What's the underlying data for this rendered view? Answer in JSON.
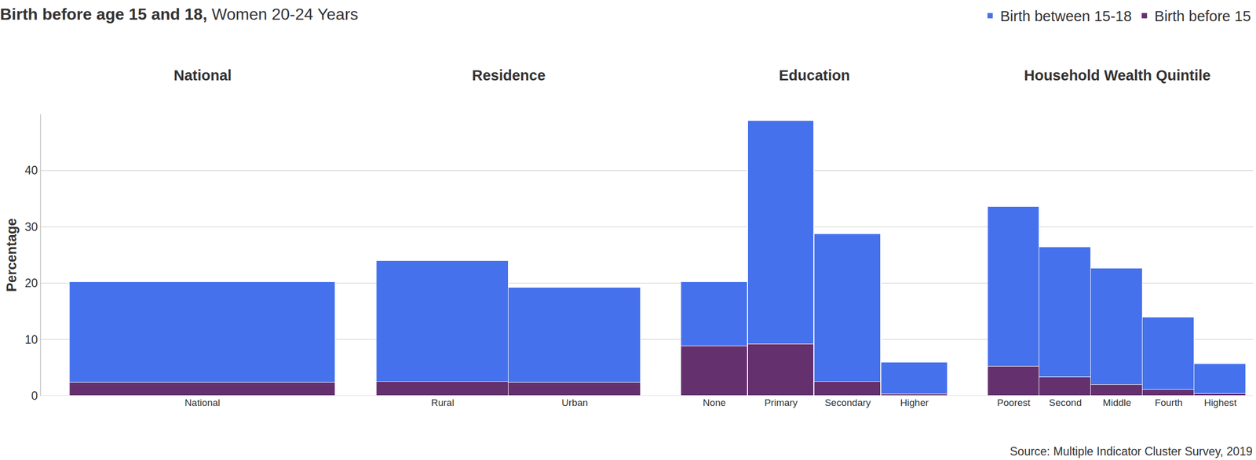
{
  "chart_data": {
    "type": "bar",
    "title": "Birth before age 15 and 18, Women 20-24 Years",
    "y_label": "Percentage",
    "source": "Source: Multiple Indicator Cluster Survey, 2019",
    "stacked": true,
    "legend": "top right",
    "grid": true,
    "ylim": [
      0,
      50
    ],
    "yticks": [
      0,
      10,
      20,
      30,
      40
    ],
    "groups": [
      {
        "title": "National",
        "categories": [
          "National"
        ]
      },
      {
        "title": "Residence",
        "categories": [
          "Rural",
          "Urban"
        ]
      },
      {
        "title": "Education",
        "categories": [
          "None",
          "Primary",
          "Secondary",
          "Higher"
        ]
      },
      {
        "title": "Household Wealth Quintile",
        "categories": [
          "Poorest",
          "Second",
          "Middle",
          "Fourth",
          "Highest"
        ]
      }
    ],
    "series": [
      {
        "name": "Birth between 15-18",
        "color": "#4671ec",
        "values": [
          17.9,
          21.5,
          16.9,
          11.4,
          39.6,
          26.2,
          5.6,
          28.4,
          23.1,
          20.6,
          12.8,
          5.3
        ]
      },
      {
        "name": "Birth before 15",
        "color": "#64306e",
        "values": [
          2.3,
          2.5,
          2.3,
          8.8,
          9.2,
          2.5,
          0.3,
          5.2,
          3.3,
          2.0,
          1.1,
          0.4
        ]
      }
    ]
  }
}
